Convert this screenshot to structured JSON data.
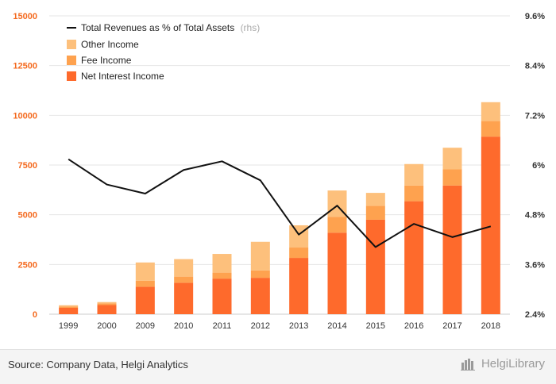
{
  "chart_data": {
    "type": "bar",
    "stacked": true,
    "categories": [
      "1999",
      "2000",
      "2009",
      "2010",
      "2011",
      "2012",
      "2013",
      "2014",
      "2015",
      "2016",
      "2017",
      "2018"
    ],
    "series": [
      {
        "name": "Net Interest Income",
        "color": "#fe6a2c",
        "values": [
          320,
          460,
          1380,
          1580,
          1790,
          1830,
          2830,
          4100,
          4750,
          5680,
          6470,
          8930
        ]
      },
      {
        "name": "Fee Income",
        "color": "#fea24f",
        "values": [
          70,
          90,
          300,
          310,
          300,
          370,
          520,
          790,
          700,
          790,
          810,
          780
        ]
      },
      {
        "name": "Other Income",
        "color": "#fdc07c",
        "values": [
          60,
          60,
          920,
          880,
          940,
          1440,
          1120,
          1330,
          650,
          1080,
          1090,
          950
        ]
      }
    ],
    "line": {
      "name": "Total Revenues as % of Total Assets",
      "axis_note": "(rhs)",
      "color": "#111111",
      "values": [
        6.14,
        5.53,
        5.31,
        5.88,
        6.09,
        5.63,
        4.32,
        5.02,
        4.02,
        4.58,
        4.26,
        4.52
      ]
    },
    "ylim": [
      0,
      15000
    ],
    "yticks": [
      "0",
      "2500",
      "5000",
      "7500",
      "10000",
      "12500",
      "15000"
    ],
    "ylim_right": [
      2.4,
      9.6
    ],
    "yticks_right": [
      "2.4%",
      "3.6%",
      "4.8%",
      "6%",
      "7.2%",
      "8.4%",
      "9.6%"
    ],
    "grid": true,
    "legend_position": "top-left"
  },
  "footer": {
    "source": "Source: Company Data, Helgi Analytics",
    "brand": "HelgiLibrary"
  }
}
